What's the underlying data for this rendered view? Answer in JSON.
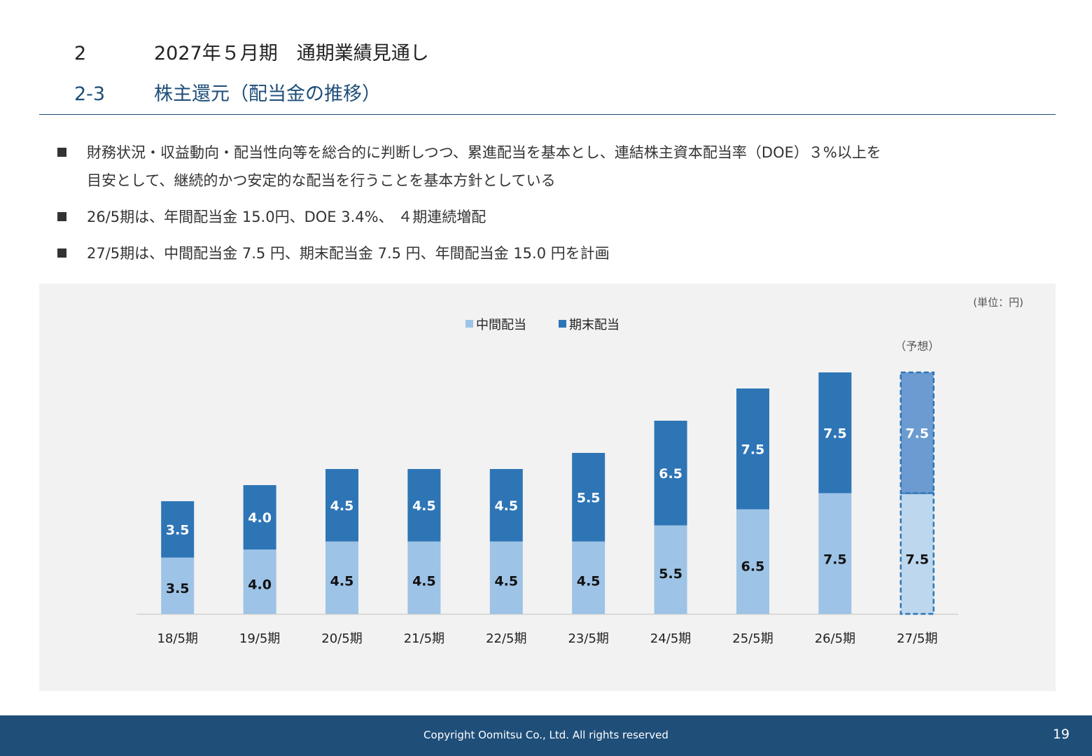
{
  "header": {
    "section_number": "2",
    "section_title": "2027年５月期　通期業績見通し",
    "subsection_number": "2-3",
    "subsection_title": "株主還元（配当金の推移）"
  },
  "bullets": [
    {
      "line1": "財務状況・収益動向・配当性向等を総合的に判断しつつ、累進配当を基本とし、連結株主資本配当率（DOE）３%以上を",
      "line2": "目安として、継続的かつ安定的な配当を行うことを基本方針としている"
    },
    {
      "line1": "26/5期は、年間配当金 15.0円、DOE 3.4%、 ４期連続増配",
      "line2": ""
    },
    {
      "line1": "27/5期は、中間配当金 7.5 円、期末配当金 7.5 円、年間配当金 15.0 円を計画",
      "line2": ""
    }
  ],
  "chart_data": {
    "type": "bar",
    "stacked": true,
    "unit_label": "(単位：円)",
    "forecast_label": "（予想）",
    "categories": [
      "18/5期",
      "19/5期",
      "20/5期",
      "21/5期",
      "22/5期",
      "23/5期",
      "24/5期",
      "25/5期",
      "26/5期",
      "27/5期"
    ],
    "series": [
      {
        "name": "中間配当",
        "values": [
          3.5,
          4.0,
          4.5,
          4.5,
          4.5,
          4.5,
          5.5,
          6.5,
          7.5,
          7.5
        ],
        "labels": [
          "3.5",
          "4.0",
          "4.5",
          "4.5",
          "4.5",
          "4.5",
          "5.5",
          "6.5",
          "7.5",
          "7.5"
        ]
      },
      {
        "name": "期末配当",
        "values": [
          3.5,
          4.0,
          4.5,
          4.5,
          4.5,
          5.5,
          6.5,
          7.5,
          7.5,
          7.5
        ],
        "labels": [
          "3.5",
          "4.0",
          "4.5",
          "4.5",
          "4.5",
          "5.5",
          "6.5",
          "7.5",
          "7.5",
          "7.5"
        ]
      }
    ],
    "forecast_category": "27/5期",
    "legend_position": "top-center",
    "grid": false,
    "colors": {
      "interim": "#9dc3e6",
      "year_end": "#2e75b6",
      "interim_forecast": "#bdd7ee",
      "year_end_forecast": "#6b9bd1"
    }
  },
  "footer": {
    "copyright": "Copyright Oomitsu Co., Ltd. All rights reserved",
    "page_number": "19"
  }
}
